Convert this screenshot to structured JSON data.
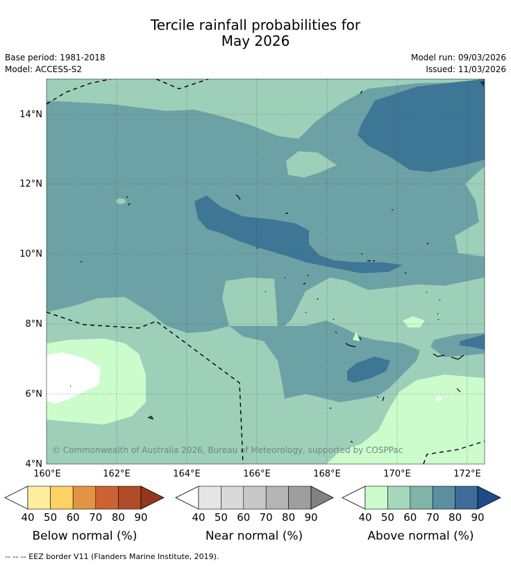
{
  "title_line1": "Tercile rainfall probabilities for",
  "title_line2": "May 2026",
  "base_period": "Base period: 1981-2018",
  "model": "Model: ACCESS-S2",
  "model_run": "Model run: 09/03/2026",
  "issued": "Issued: 11/03/2026",
  "copyright": "© Commonwealth of Australia 2026, Bureau of Meteorology, supported by COSPPac",
  "lat_ticks": [
    "4°N",
    "6°N",
    "8°N",
    "10°N",
    "12°N",
    "14°N"
  ],
  "lon_ticks": [
    "160°E",
    "162°E",
    "164°E",
    "166°E",
    "168°E",
    "170°E",
    "172°E"
  ],
  "colorbars": [
    {
      "title": "Below normal (%)",
      "ticks": [
        "40",
        "50",
        "60",
        "70",
        "80",
        "90"
      ],
      "colors": [
        "#ffeda0",
        "#fed165",
        "#e29443",
        "#cb6334",
        "#b14c28",
        "#93371f"
      ]
    },
    {
      "title": "Near normal (%)",
      "ticks": [
        "40",
        "50",
        "60",
        "70",
        "80",
        "90"
      ],
      "colors": [
        "#e6e6e6",
        "#d9d9d9",
        "#c8c8c8",
        "#b4b4b4",
        "#9e9e9e",
        "#828282"
      ]
    },
    {
      "title": "Above normal (%)",
      "ticks": [
        "40",
        "50",
        "60",
        "70",
        "80",
        "90"
      ],
      "colors": [
        "#ccfccc",
        "#a6d8bc",
        "#80b4a8",
        "#5a8fa0",
        "#3d6c98",
        "#1f4b88"
      ]
    }
  ],
  "footnote": "-- -- -- EEZ border V11 (Flanders Marine Institute, 2019).",
  "map_colors": {
    "above_40_50": "#ccfccc",
    "above_50_60": "#9ecfb8",
    "above_60_70": "#6ca2a6",
    "above_70_80": "#3e7695",
    "near_40_50": "#ffffff"
  }
}
